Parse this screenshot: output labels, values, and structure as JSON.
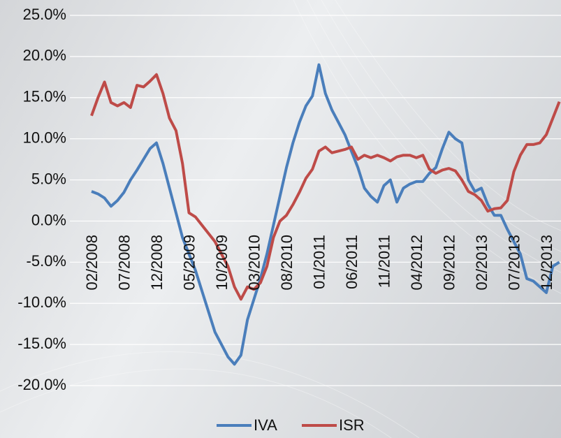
{
  "chart_data": {
    "type": "line",
    "categories": [
      "02/2008",
      null,
      null,
      null,
      null,
      "07/2008",
      null,
      null,
      null,
      null,
      "12/2008",
      null,
      null,
      null,
      null,
      "05/2009",
      null,
      null,
      null,
      null,
      "10/2009",
      null,
      null,
      null,
      null,
      "03/2010",
      null,
      null,
      null,
      null,
      "08/2010",
      null,
      null,
      null,
      null,
      "01/2011",
      null,
      null,
      null,
      null,
      "06/2011",
      null,
      null,
      null,
      null,
      "11/2011",
      null,
      null,
      null,
      null,
      "04/2012",
      null,
      null,
      null,
      null,
      "09/2012",
      null,
      null,
      null,
      null,
      "02/2013",
      null,
      null,
      null,
      null,
      "07/2013",
      null,
      null,
      null,
      null,
      "12/2013",
      null,
      null
    ],
    "series": [
      {
        "name": "IVA",
        "color": "#4a7ebb",
        "values": [
          3.6,
          3.3,
          2.8,
          1.8,
          2.5,
          3.5,
          5,
          6.2,
          7.5,
          8.8,
          9.5,
          7,
          4,
          1,
          -2,
          -4,
          -6,
          -8.5,
          -11,
          -13.5,
          -15,
          -16.5,
          -17.4,
          -16.3,
          -12,
          -9.5,
          -7,
          -4,
          -0.5,
          3,
          6.5,
          9.5,
          12,
          14,
          15.2,
          19,
          15.5,
          13.5,
          12,
          10.5,
          8.5,
          6.5,
          4,
          3,
          2.3,
          4.3,
          5,
          2.3,
          4,
          4.5,
          4.8,
          4.8,
          5.8,
          6.5,
          8.8,
          10.8,
          10,
          9.5,
          5,
          3.6,
          4,
          2,
          0.7,
          0.7,
          -1,
          -2.5,
          -4,
          -7,
          -7.3,
          -8,
          -8.7,
          -5.5,
          -5
        ]
      },
      {
        "name": "ISR",
        "color": "#be4b48",
        "values": [
          12.8,
          15,
          16.9,
          14.4,
          14,
          14.4,
          13.8,
          16.5,
          16.3,
          17,
          17.8,
          15.5,
          12.5,
          11,
          7,
          1,
          0.5,
          -0.5,
          -1.5,
          -2.5,
          -4,
          -5.5,
          -8,
          -9.5,
          -8,
          -8.3,
          -7.5,
          -5.5,
          -2,
          0,
          0.7,
          2,
          3.5,
          5.2,
          6.3,
          8.5,
          9,
          8.3,
          8.5,
          8.7,
          9,
          7.5,
          8,
          7.7,
          8,
          7.7,
          7.3,
          7.8,
          8,
          8,
          7.7,
          8,
          6.3,
          5.8,
          6.2,
          6.4,
          6.1,
          5,
          3.6,
          3.2,
          2.5,
          1.2,
          1.5,
          1.6,
          2.5,
          6,
          8,
          9.3,
          9.3,
          9.5,
          10.5,
          12.5,
          14.5
        ]
      }
    ],
    "ylim": [
      -20,
      25
    ],
    "yticks": [
      {
        "value": -20,
        "label": "-20.0%"
      },
      {
        "value": -15,
        "label": "-15.0%"
      },
      {
        "value": -10,
        "label": "-10.0%"
      },
      {
        "value": -5,
        "label": "-5.0%"
      },
      {
        "value": 0,
        "label": "0.0%"
      },
      {
        "value": 5,
        "label": "5.0%"
      },
      {
        "value": 10,
        "label": "10.0%"
      },
      {
        "value": 15,
        "label": "15.0%"
      },
      {
        "value": 20,
        "label": "20.0%"
      },
      {
        "value": 25,
        "label": "25.0%"
      }
    ],
    "grid": true
  }
}
